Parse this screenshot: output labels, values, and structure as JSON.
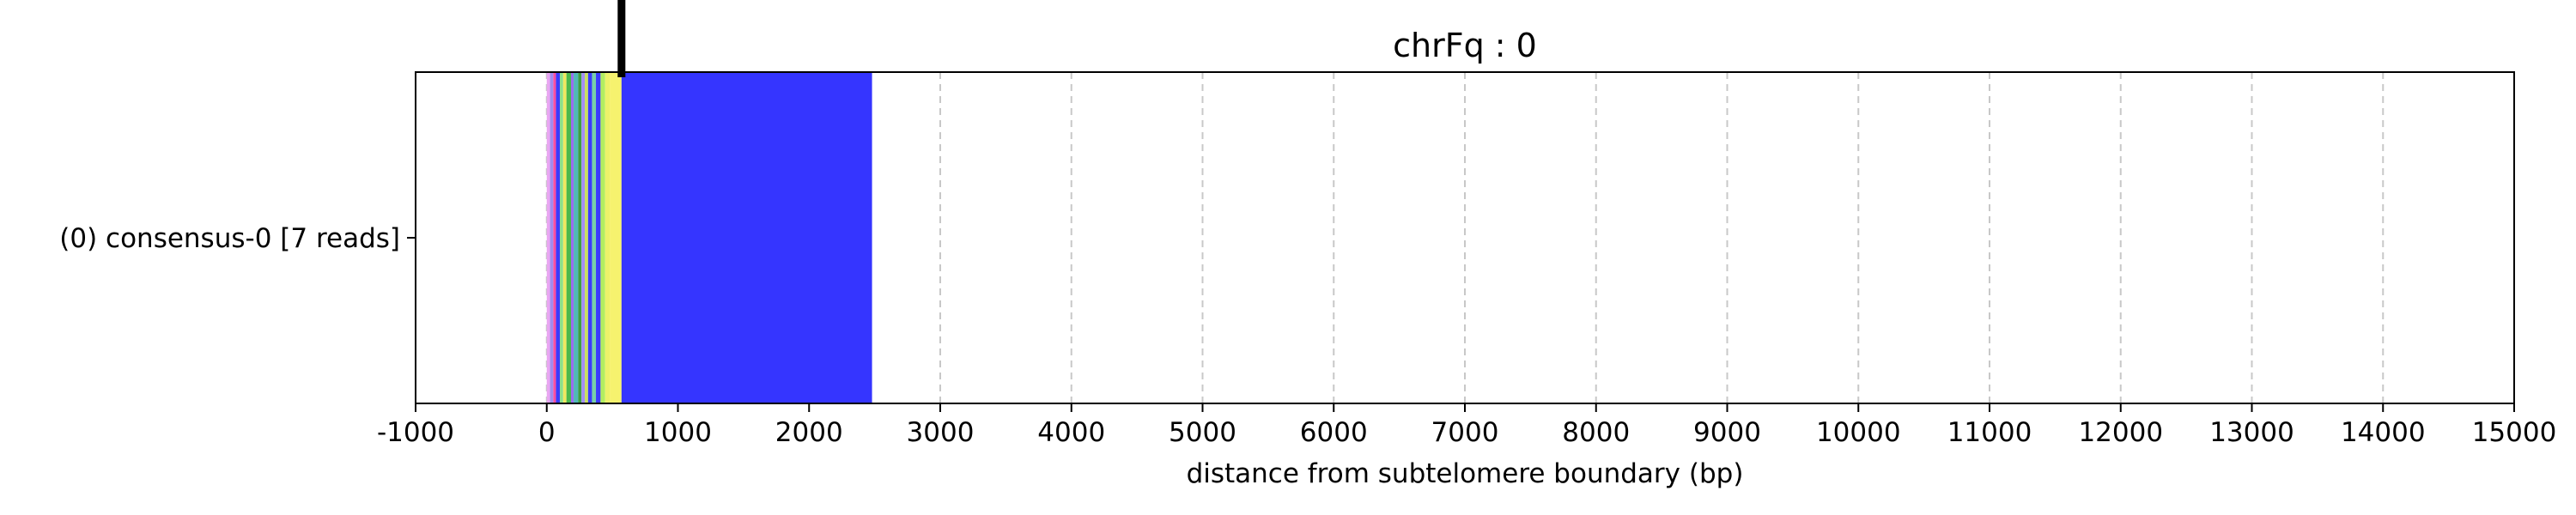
{
  "chart_data": {
    "type": "bar",
    "orientation": "horizontal",
    "title": "chrFq : 0",
    "xlabel": "distance from subtelomere boundary (bp)",
    "ylabel": "",
    "xlim": [
      -1000,
      15000
    ],
    "xticks": [
      -1000,
      0,
      1000,
      2000,
      3000,
      4000,
      5000,
      6000,
      7000,
      8000,
      9000,
      10000,
      11000,
      12000,
      13000,
      14000,
      15000
    ],
    "grid": "x-dashed",
    "legend": "none",
    "categories": [
      "(0) consensus-0 [7 reads]"
    ],
    "marker": {
      "x": 570,
      "color": "#000000"
    },
    "segments": [
      {
        "start": 0,
        "end": 25,
        "color": "#e9a6f2"
      },
      {
        "start": 25,
        "end": 50,
        "color": "#a08cf0"
      },
      {
        "start": 50,
        "end": 70,
        "color": "#ff4fa0"
      },
      {
        "start": 70,
        "end": 100,
        "color": "#3a3aff"
      },
      {
        "start": 100,
        "end": 125,
        "color": "#8be08b"
      },
      {
        "start": 125,
        "end": 150,
        "color": "#f0e860"
      },
      {
        "start": 150,
        "end": 185,
        "color": "#4bb84b"
      },
      {
        "start": 185,
        "end": 205,
        "color": "#9a6cf0"
      },
      {
        "start": 205,
        "end": 240,
        "color": "#50b8b8"
      },
      {
        "start": 240,
        "end": 265,
        "color": "#3f9f3f"
      },
      {
        "start": 265,
        "end": 290,
        "color": "#a48ef5"
      },
      {
        "start": 290,
        "end": 315,
        "color": "#c8e060"
      },
      {
        "start": 315,
        "end": 345,
        "color": "#3a3aff"
      },
      {
        "start": 345,
        "end": 375,
        "color": "#78d0a8"
      },
      {
        "start": 375,
        "end": 410,
        "color": "#3a3aff"
      },
      {
        "start": 410,
        "end": 445,
        "color": "#b2ee60"
      },
      {
        "start": 445,
        "end": 480,
        "color": "#ecf26a"
      },
      {
        "start": 480,
        "end": 570,
        "color": "#f6f26e"
      },
      {
        "start": 570,
        "end": 2480,
        "color": "#3535ff"
      }
    ]
  }
}
